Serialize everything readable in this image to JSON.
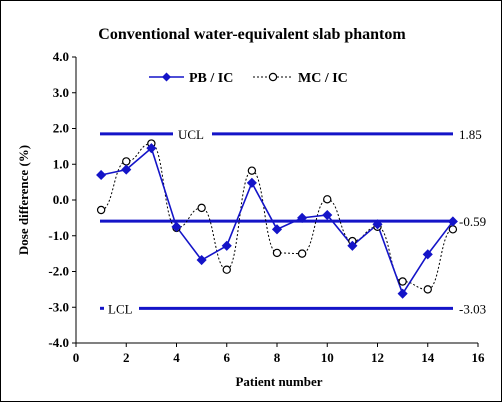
{
  "chart_data": {
    "type": "line",
    "title": "Conventional water-equivalent slab phantom",
    "xlabel": "Patient number",
    "ylabel": "Dose difference (%)",
    "xlim": [
      0,
      16
    ],
    "ylim": [
      -4.0,
      4.0
    ],
    "xticks": [
      "0",
      "2",
      "4",
      "6",
      "8",
      "10",
      "12",
      "14",
      "16"
    ],
    "yticks": [
      "4.0",
      "3.0",
      "2.0",
      "1.0",
      "0.0",
      "-1.0",
      "-2.0",
      "-3.0",
      "-4.0"
    ],
    "grid": false,
    "legend": "top-center",
    "x": [
      1,
      2,
      3,
      4,
      5,
      6,
      7,
      8,
      9,
      10,
      11,
      12,
      13,
      14,
      15
    ],
    "series": [
      {
        "name": "PB / IC",
        "style": "solid line, filled diamond markers",
        "color": "#1414c8",
        "values": [
          0.7,
          0.85,
          1.45,
          -0.75,
          -1.68,
          -1.28,
          0.48,
          -0.82,
          -0.5,
          -0.42,
          -1.28,
          -0.68,
          -2.62,
          -1.52,
          -0.6
        ]
      },
      {
        "name": "MC / IC",
        "style": "dotted line, open circle markers",
        "color": "#000000",
        "values": [
          -0.28,
          1.08,
          1.58,
          -0.78,
          -0.22,
          -1.95,
          0.82,
          -1.48,
          -1.5,
          0.02,
          -1.15,
          -0.75,
          -2.28,
          -2.5,
          -0.82
        ]
      }
    ],
    "control_lines": [
      {
        "label": "UCL",
        "value": 1.85,
        "value_label": "1.85",
        "color": "#1414c8"
      },
      {
        "label": "",
        "value": -0.59,
        "value_label": "-0.59",
        "color": "#1414c8"
      },
      {
        "label": "LCL",
        "value": -3.03,
        "value_label": "-3.03",
        "color": "#1414c8"
      }
    ]
  }
}
